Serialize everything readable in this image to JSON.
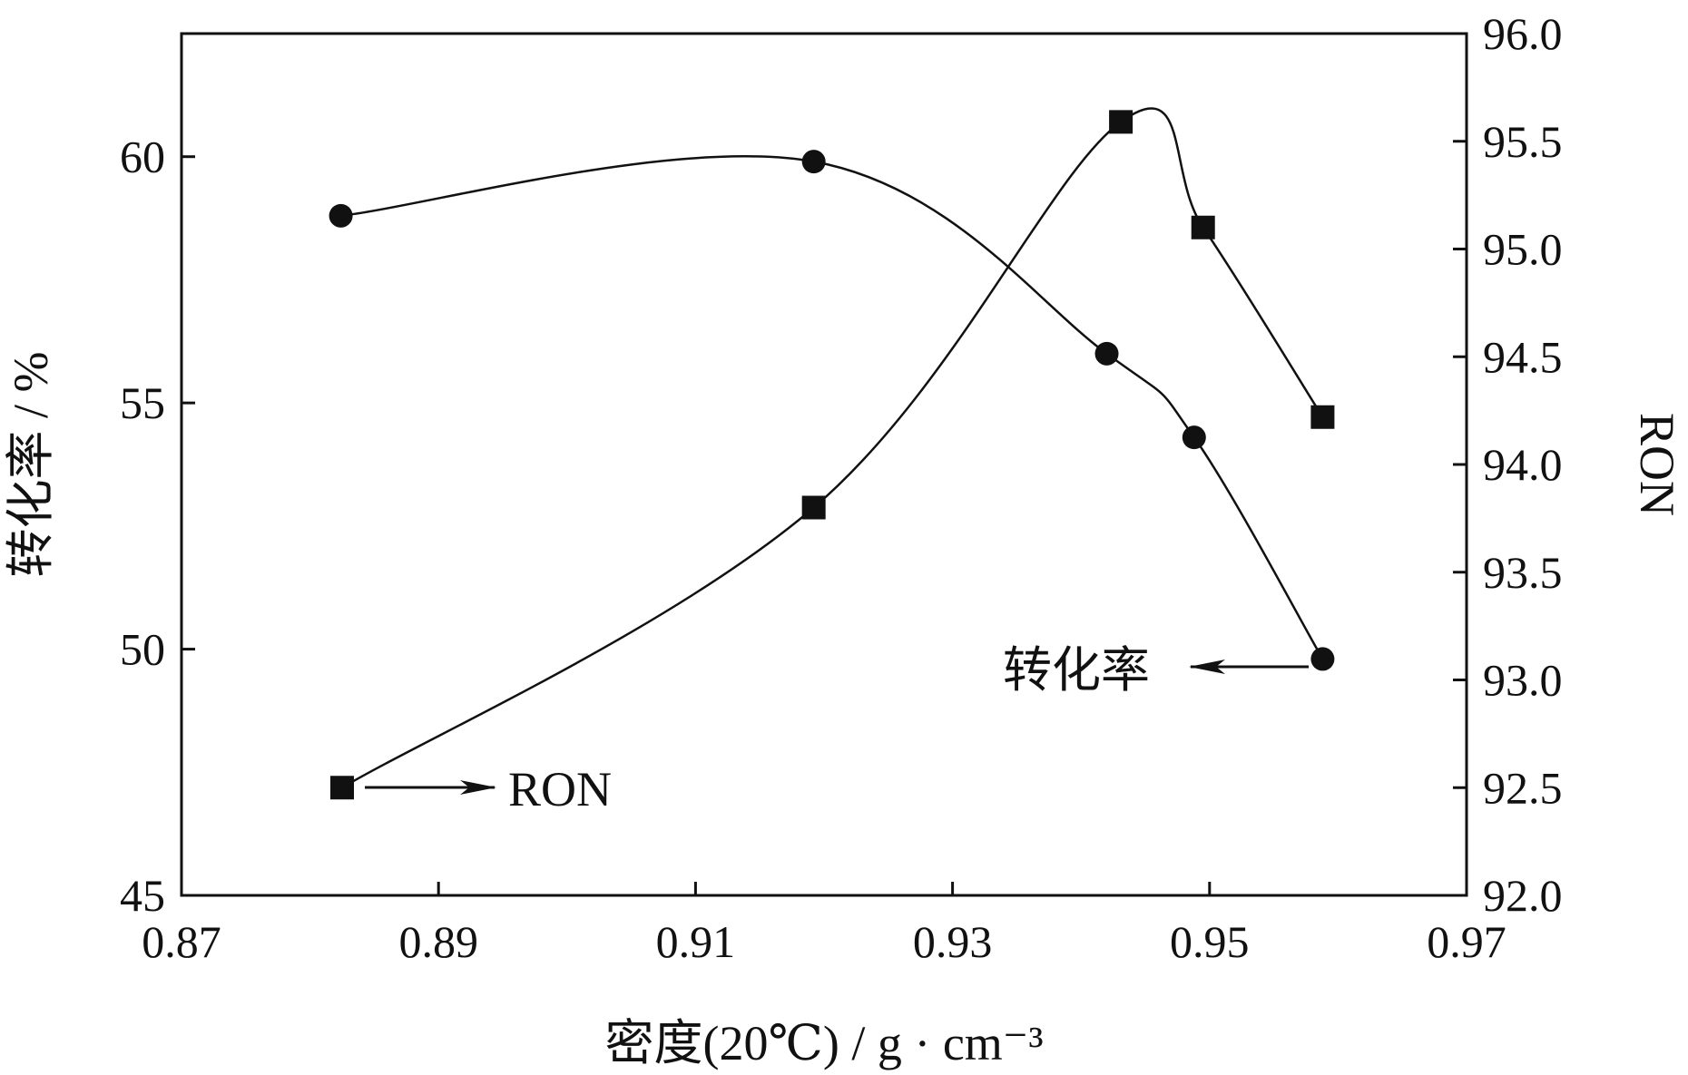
{
  "chart_data": {
    "type": "line",
    "title": "",
    "xlabel": "密度(20℃) / g · cm⁻³",
    "ylabel_left": "转化率 / %",
    "ylabel_right": "RON",
    "xlim": [
      0.87,
      0.97
    ],
    "ylim_left": [
      45,
      62.5
    ],
    "ylim_right": [
      92.0,
      96.0
    ],
    "x_ticks": [
      "0.87",
      "0.89",
      "0.91",
      "0.93",
      "0.95",
      "0.97"
    ],
    "y_left_ticks": [
      "45",
      "50",
      "55",
      "60"
    ],
    "y_right_ticks": [
      "92.0",
      "92.5",
      "93.0",
      "93.5",
      "94.0",
      "94.5",
      "95.0",
      "95.5",
      "96.0"
    ],
    "grid": false,
    "series": [
      {
        "name": "转化率",
        "axis": "left",
        "marker": "circle",
        "x": [
          0.8824,
          0.9192,
          0.942,
          0.9488,
          0.9588
        ],
        "y": [
          58.8,
          59.9,
          56.0,
          54.3,
          49.8
        ]
      },
      {
        "name": "RON",
        "axis": "right",
        "marker": "square",
        "x": [
          0.8825,
          0.9192,
          0.9431,
          0.9495,
          0.9588
        ],
        "y": [
          92.5,
          93.8,
          95.59,
          95.1,
          94.22
        ]
      }
    ],
    "annotations": [
      {
        "text": "RON",
        "arrow": "right"
      },
      {
        "text": "转化率",
        "arrow": "left"
      }
    ]
  }
}
